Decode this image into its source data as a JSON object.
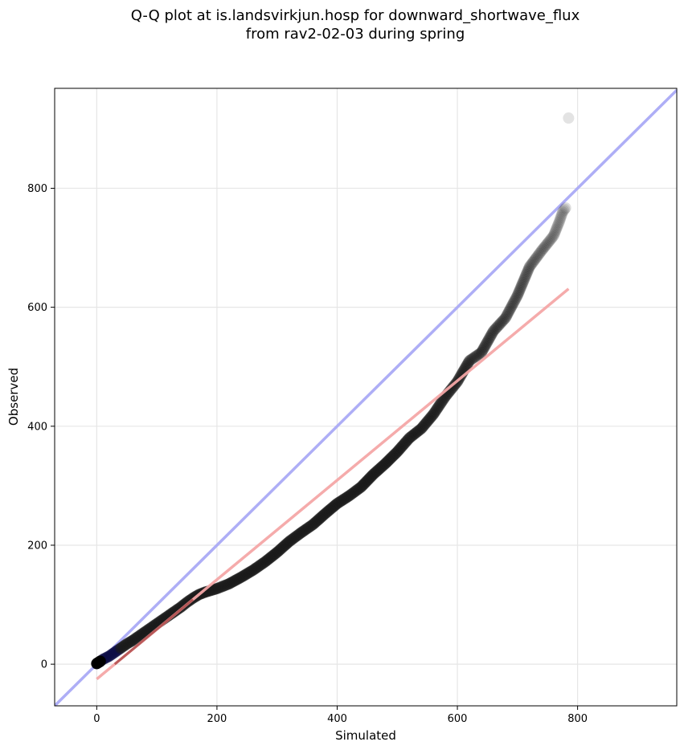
{
  "chart_data": {
    "type": "scatter",
    "title_line1": "Q-Q plot at is.landsvirkjun.hosp for downward_shortwave_flux",
    "title_line2": "from rav2-02-03 during spring",
    "xlabel": "Simulated",
    "ylabel": "Observed",
    "xlim": [
      -70,
      965
    ],
    "ylim": [
      -70,
      968
    ],
    "xticks": [
      0,
      200,
      400,
      600,
      800
    ],
    "yticks": [
      0,
      200,
      400,
      600,
      800
    ],
    "grid": true,
    "colors": {
      "points": "#1a1a1a",
      "identity_line": "#aaaaf5",
      "fit_line": "#f4a6a6",
      "low_quantile_points": "#0d0d45",
      "low_fit_segment": "#8b1a1a"
    },
    "identity_line": {
      "from": [
        -70,
        -70
      ],
      "to": [
        965,
        965
      ]
    },
    "fit_line": {
      "from": [
        0,
        -25
      ],
      "to": [
        785,
        631
      ]
    },
    "quantile_curve": [
      [
        0,
        1
      ],
      [
        5,
        4
      ],
      [
        10,
        8
      ],
      [
        20,
        13
      ],
      [
        30,
        20
      ],
      [
        40,
        27
      ],
      [
        50,
        34
      ],
      [
        60,
        40
      ],
      [
        70,
        47
      ],
      [
        80,
        54
      ],
      [
        90,
        61
      ],
      [
        100,
        68
      ],
      [
        110,
        75
      ],
      [
        120,
        82
      ],
      [
        130,
        89
      ],
      [
        140,
        96
      ],
      [
        150,
        104
      ],
      [
        160,
        111
      ],
      [
        170,
        117
      ],
      [
        180,
        121
      ],
      [
        190,
        124
      ],
      [
        200,
        127
      ],
      [
        220,
        135
      ],
      [
        240,
        146
      ],
      [
        260,
        158
      ],
      [
        280,
        172
      ],
      [
        300,
        188
      ],
      [
        320,
        206
      ],
      [
        340,
        221
      ],
      [
        360,
        235
      ],
      [
        380,
        253
      ],
      [
        400,
        270
      ],
      [
        420,
        283
      ],
      [
        440,
        298
      ],
      [
        460,
        319
      ],
      [
        480,
        337
      ],
      [
        500,
        357
      ],
      [
        520,
        380
      ],
      [
        540,
        396
      ],
      [
        560,
        420
      ],
      [
        580,
        450
      ],
      [
        600,
        475
      ],
      [
        620,
        510
      ],
      [
        640,
        524
      ],
      [
        660,
        560
      ],
      [
        680,
        582
      ],
      [
        700,
        620
      ],
      [
        720,
        668
      ],
      [
        740,
        695
      ],
      [
        760,
        720
      ],
      [
        770,
        745
      ],
      [
        775,
        760
      ],
      [
        780,
        767
      ]
    ],
    "outlier": [
      785,
      918
    ]
  }
}
